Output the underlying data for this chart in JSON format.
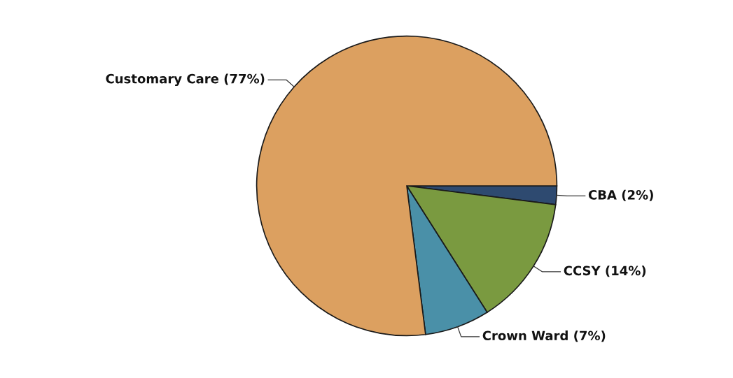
{
  "chart_data": {
    "type": "pie",
    "categories": [
      "CBA (2%)",
      "CCSY (14%)",
      "Crown Ward (7%)",
      "Customary Care (77%)"
    ],
    "values": [
      2,
      14,
      7,
      77
    ],
    "colors": [
      "#2e4a70",
      "#7a9a40",
      "#4a90a8",
      "#dca060"
    ]
  }
}
